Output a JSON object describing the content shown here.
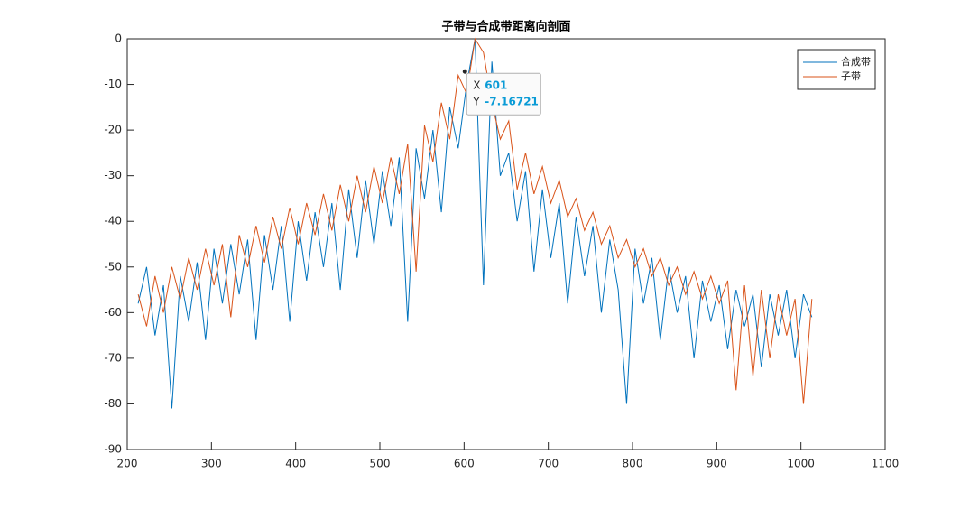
{
  "chart_data": {
    "type": "line",
    "title": "子带与合成带距离向剖面",
    "x": [
      213,
      223,
      233,
      243,
      253,
      263,
      273,
      283,
      293,
      303,
      313,
      323,
      333,
      343,
      353,
      363,
      373,
      383,
      393,
      403,
      413,
      423,
      433,
      443,
      453,
      463,
      473,
      483,
      493,
      503,
      513,
      523,
      533,
      543,
      553,
      563,
      573,
      583,
      593,
      603,
      613,
      623,
      633,
      643,
      653,
      663,
      673,
      683,
      693,
      703,
      713,
      723,
      733,
      743,
      753,
      763,
      773,
      783,
      793,
      803,
      813,
      823,
      833,
      843,
      853,
      863,
      873,
      883,
      893,
      903,
      913,
      923,
      933,
      943,
      953,
      963,
      973,
      983,
      993,
      1003,
      1013
    ],
    "series": [
      {
        "name": "合成带",
        "color": "#0072bd",
        "values": [
          -58,
          -50,
          -65,
          -54,
          -81,
          -52,
          -62,
          -49,
          -66,
          -46,
          -58,
          -45,
          -56,
          -44,
          -66,
          -43,
          -55,
          -41,
          -62,
          -40,
          -53,
          -38,
          -50,
          -36,
          -55,
          -33,
          -48,
          -31,
          -45,
          -29,
          -41,
          -26,
          -62,
          -24,
          -35,
          -20,
          -38,
          -15,
          -24,
          -10,
          0,
          -54,
          -5,
          -30,
          -25,
          -40,
          -29,
          -51,
          -33,
          -48,
          -36,
          -58,
          -39,
          -52,
          -41,
          -60,
          -44,
          -55,
          -80,
          -46,
          -58,
          -48,
          -66,
          -50,
          -60,
          -52,
          -70,
          -53,
          -62,
          -54,
          -68,
          -55,
          -63,
          -56,
          -72,
          -56,
          -65,
          -55,
          -70,
          -56,
          -61
        ]
      },
      {
        "name": "子带",
        "color": "#d95319",
        "values": [
          -56,
          -63,
          -52,
          -60,
          -50,
          -57,
          -48,
          -55,
          -46,
          -54,
          -45,
          -61,
          -43,
          -50,
          -41,
          -49,
          -39,
          -46,
          -37,
          -45,
          -36,
          -43,
          -34,
          -42,
          -32,
          -40,
          -30,
          -38,
          -28,
          -36,
          -26,
          -34,
          -23,
          -51,
          -19,
          -27,
          -14,
          -22,
          -8,
          -12,
          0,
          -3,
          -14,
          -22,
          -18,
          -33,
          -25,
          -34,
          -28,
          -36,
          -31,
          -39,
          -35,
          -42,
          -38,
          -45,
          -41,
          -48,
          -44,
          -50,
          -46,
          -52,
          -48,
          -54,
          -50,
          -56,
          -51,
          -57,
          -52,
          -58,
          -53,
          -77,
          -54,
          -74,
          -55,
          -70,
          -56,
          -65,
          -57,
          -80,
          -57
        ]
      }
    ],
    "xlim": [
      200,
      1100
    ],
    "xticks": [
      200,
      300,
      400,
      500,
      600,
      700,
      800,
      900,
      1000,
      1100
    ],
    "ylim": [
      -90,
      0
    ],
    "yticks": [
      0,
      -10,
      -20,
      -30,
      -40,
      -50,
      -60,
      -70,
      -80,
      -90
    ],
    "legend": "upper right",
    "datatip": {
      "x_label": "X",
      "x": 601,
      "y_label": "Y",
      "y": -7.16721
    }
  }
}
